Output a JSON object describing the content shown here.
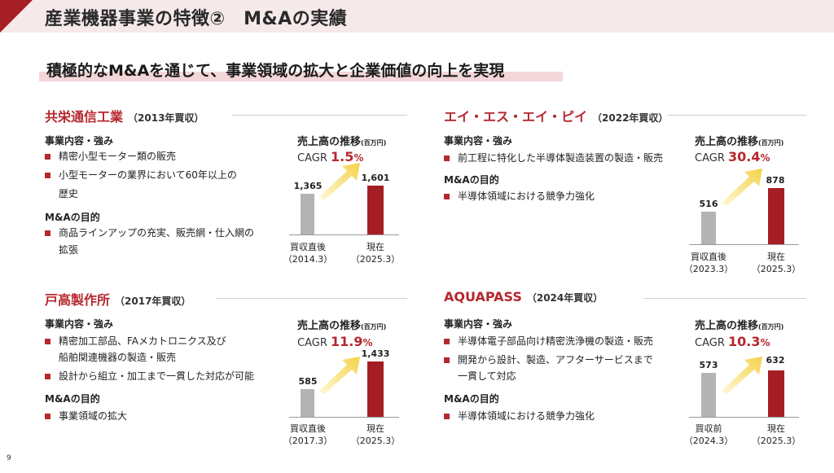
{
  "header": {
    "title": "産業機器事業の特徴②　M&Aの実績"
  },
  "subtitle": "積極的なM&Aを通じて、事業領域の拡大と企業価値の向上を実現",
  "labels": {
    "business": "事業内容・強み",
    "purpose": "M&Aの目的",
    "chart_title": "売上高の推移",
    "chart_unit": "(百万円)",
    "cagr": "CAGR"
  },
  "colors": {
    "accent": "#b5282e",
    "bar_before": "#b3b3b3",
    "bar_now": "#a51e24",
    "header_bg": "#f5e9ea"
  },
  "companies": [
    {
      "name": "共栄通信工業",
      "year": "（2013年買収）",
      "business": [
        "精密小型モーター類の販売",
        "小型モーターの業界において60年以上の",
        "歴史"
      ],
      "purpose": [
        "商品ラインアップの充実、販売網・仕入網の",
        "拡張"
      ],
      "cagr": "1.5",
      "cagr_unit": "%",
      "before_value": "1,365",
      "now_value": "1,601",
      "before_label": [
        "買収直後",
        "（2014.3）"
      ],
      "now_label": [
        "現在",
        "（2025.3）"
      ]
    },
    {
      "name": "エイ・エス・エイ・ピイ",
      "year": "（2022年買収）",
      "business": [
        "前工程に特化した半導体製造装置の製造・販売"
      ],
      "purpose": [
        "半導体領域における競争力強化"
      ],
      "cagr": "30.4",
      "cagr_unit": "%",
      "before_value": "516",
      "now_value": "878",
      "before_label": [
        "買収直後",
        "（2023.3）"
      ],
      "now_label": [
        "現在",
        "（2025.3）"
      ]
    },
    {
      "name": "戸高製作所",
      "year": "（2017年買収）",
      "business": [
        "精密加工部品、FAメカトロニクス及び",
        "船舶関連機器の製造・販売",
        "設計から組立・加工まで一貫した対応が可能"
      ],
      "purpose": [
        "事業領域の拡大"
      ],
      "cagr": "11.9",
      "cagr_unit": "%",
      "before_value": "585",
      "now_value": "1,433",
      "before_label": [
        "買収直後",
        "（2017.3）"
      ],
      "now_label": [
        "現在",
        "（2025.3）"
      ]
    },
    {
      "name": "AQUAPASS",
      "year": "（2024年買収）",
      "business": [
        "半導体電子部品向け精密洗浄機の製造・販売",
        "開発から設計、製造、アフターサービスまで",
        "一貫して対応"
      ],
      "purpose": [
        "半導体領域における競争力強化"
      ],
      "cagr": "10.3",
      "cagr_unit": "%",
      "before_value": "573",
      "now_value": "632",
      "before_label": [
        "買収前",
        "（2024.3）"
      ],
      "now_label": [
        "現在",
        "（2025.3）"
      ]
    }
  ],
  "page_number": "9"
}
